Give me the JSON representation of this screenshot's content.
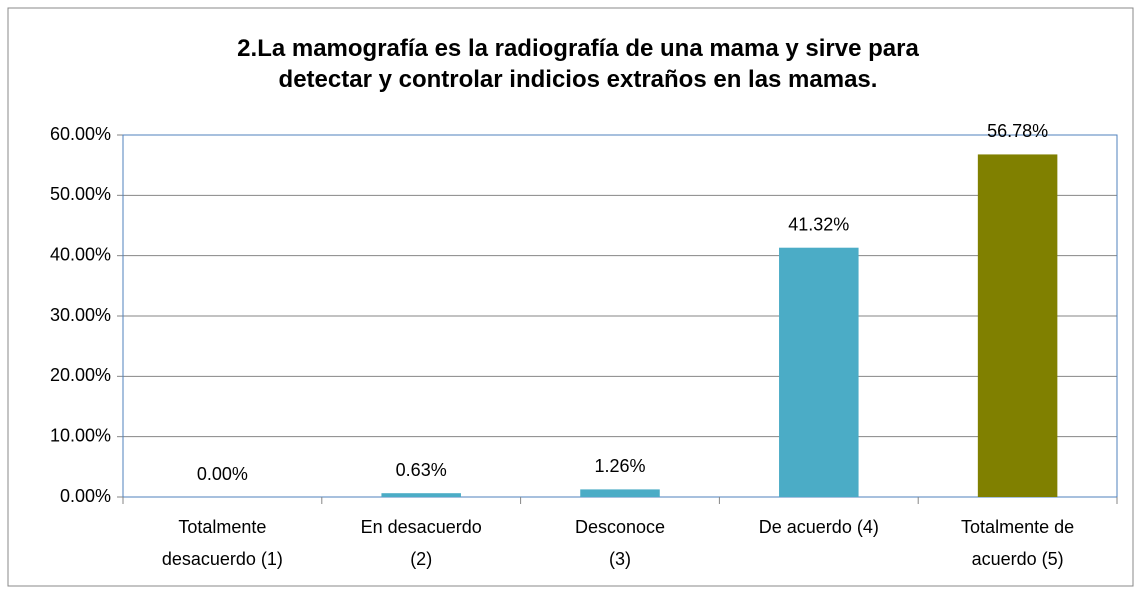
{
  "chart_data": {
    "type": "bar",
    "title": "2.La mamografía es la radiografía de una mama y sirve para\ndetectar y controlar indicios extraños en las mamas.",
    "categories": [
      "Totalmente\ndesacuerdo (1)",
      "En desacuerdo\n(2)",
      "Desconoce\n(3)",
      "De acuerdo (4)",
      "Totalmente de\nacuerdo (5)"
    ],
    "values": [
      0,
      0.63,
      1.26,
      41.32,
      56.78
    ],
    "value_labels": [
      "0.00%",
      "0.63%",
      "1.26%",
      "41.32%",
      "56.78%"
    ],
    "colors": [
      "#4bacc6",
      "#4bacc6",
      "#4bacc6",
      "#4bacc6",
      "#808000"
    ],
    "ylim": [
      0,
      60
    ],
    "yticks": [
      {
        "value": 0,
        "label": "0.00%"
      },
      {
        "value": 10,
        "label": "10.00%"
      },
      {
        "value": 20,
        "label": "20.00%"
      },
      {
        "value": 30,
        "label": "30.00%"
      },
      {
        "value": 40,
        "label": "40.00%"
      },
      {
        "value": 50,
        "label": "50.00%"
      },
      {
        "value": 60,
        "label": "60.00%"
      }
    ],
    "grid": true
  }
}
